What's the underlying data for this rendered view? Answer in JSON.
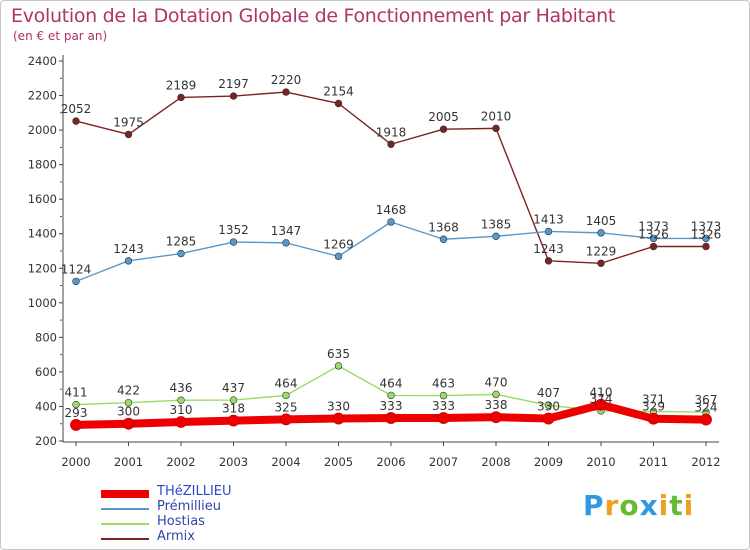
{
  "chart_data": {
    "type": "line",
    "title": "Evolution de la Dotation Globale de Fonctionnement par Habitant",
    "subtitle": "(en € et par an)",
    "xlabel": "",
    "ylabel": "",
    "ylim": [
      200,
      2400
    ],
    "yticks": [
      200,
      400,
      600,
      800,
      1000,
      1200,
      1400,
      1600,
      1800,
      2000,
      2200,
      2400
    ],
    "categories": [
      "2000",
      "2001",
      "2002",
      "2003",
      "2004",
      "2005",
      "2006",
      "2007",
      "2008",
      "2009",
      "2010",
      "2011",
      "2012"
    ],
    "grid": false,
    "legend_position": "bottom-left",
    "series": [
      {
        "name": "THéZILLIEU",
        "color": "#ee0000",
        "values": [
          293,
          300,
          310,
          318,
          325,
          330,
          333,
          333,
          338,
          330,
          410,
          329,
          324
        ]
      },
      {
        "name": "Prémillieu",
        "color": "#5599cc",
        "values": [
          1124,
          1243,
          1285,
          1352,
          1347,
          1269,
          1468,
          1368,
          1385,
          1413,
          1405,
          1373,
          1373
        ]
      },
      {
        "name": "Hostias",
        "color": "#99dd66",
        "values": [
          411,
          422,
          436,
          437,
          464,
          635,
          464,
          463,
          470,
          407,
          374,
          371,
          367
        ]
      },
      {
        "name": "Armix",
        "color": "#7a2323",
        "values": [
          2052,
          1975,
          2189,
          2197,
          2220,
          2154,
          1918,
          2005,
          2010,
          1243,
          1229,
          1326,
          1326
        ]
      }
    ]
  },
  "brand": {
    "letters": [
      "P",
      "r",
      "o",
      "x",
      "i",
      "t",
      "i"
    ],
    "colors": [
      "#3399dd",
      "#f0a020",
      "#66bb33",
      "#3399dd",
      "#f0a020",
      "#66bb33",
      "#f0a020"
    ]
  }
}
